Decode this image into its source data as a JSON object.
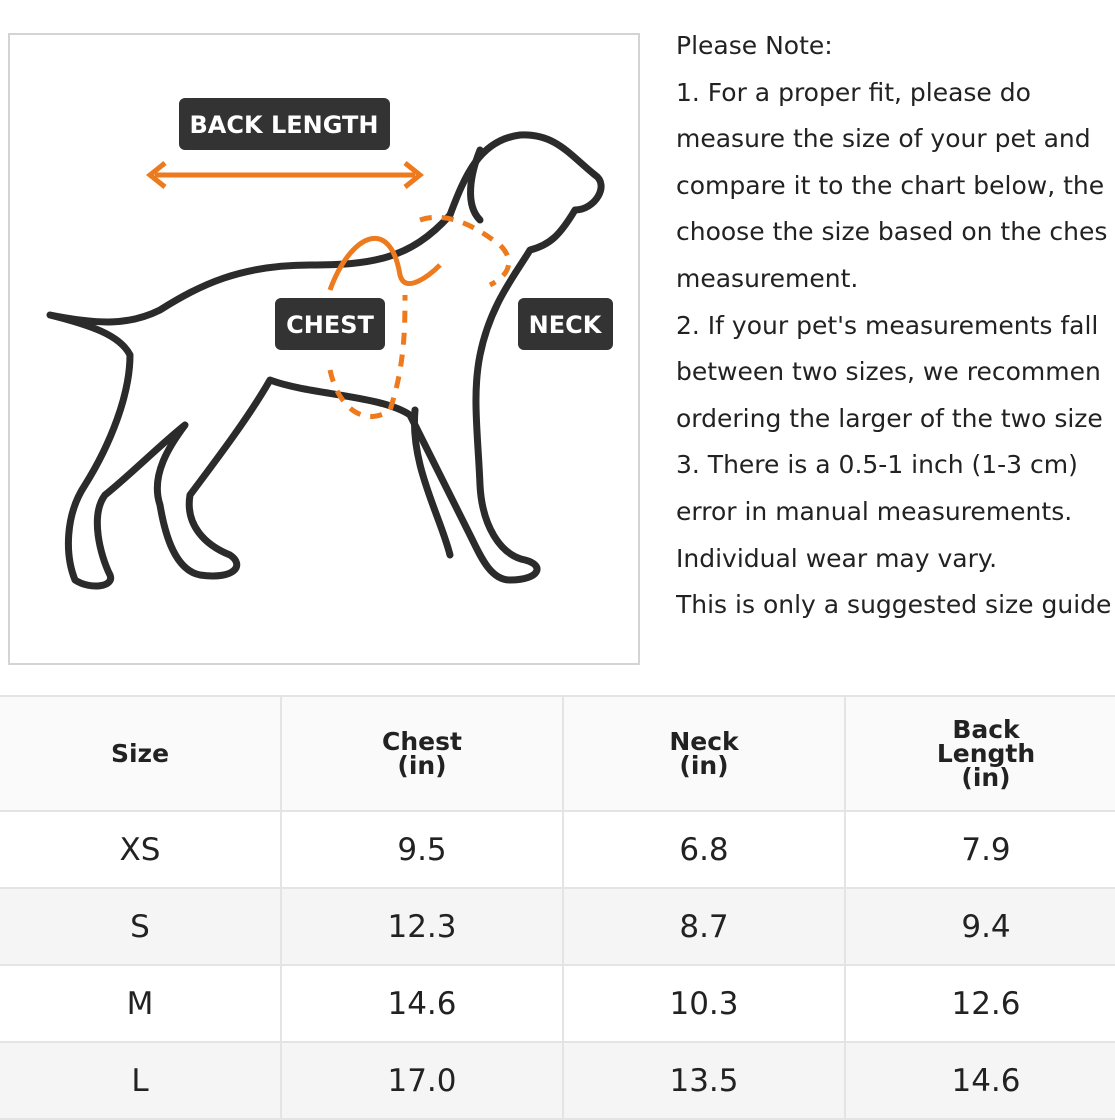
{
  "diagram": {
    "labels": [
      "BACK LENGTH",
      "CHEST",
      "NECK"
    ]
  },
  "notes": [
    "Please Note:",
    "1. For a proper fit, please do",
    "measure the size of your pet and",
    "compare it to the chart below, the",
    "choose the size based on the ches",
    "measurement.",
    "2. If your pet's measurements fall",
    "between two sizes, we recommen",
    "ordering the larger of the two size",
    "3. There is a 0.5-1 inch (1-3 cm)",
    "error in manual measurements.",
    "Individual wear may vary.",
    "This is only a suggested size guide"
  ],
  "table": {
    "header": [
      "Size",
      "Chest\n(in)",
      "Neck\n(in)",
      "Back\nLength\n(in)"
    ],
    "rows": [
      [
        "XS",
        "9.5",
        "6.8",
        "7.9"
      ],
      [
        "S",
        "12.3",
        "8.7",
        "9.4"
      ],
      [
        "M",
        "14.6",
        "10.3",
        "12.6"
      ],
      [
        "L",
        "17.0",
        "13.5",
        "14.6"
      ]
    ]
  }
}
